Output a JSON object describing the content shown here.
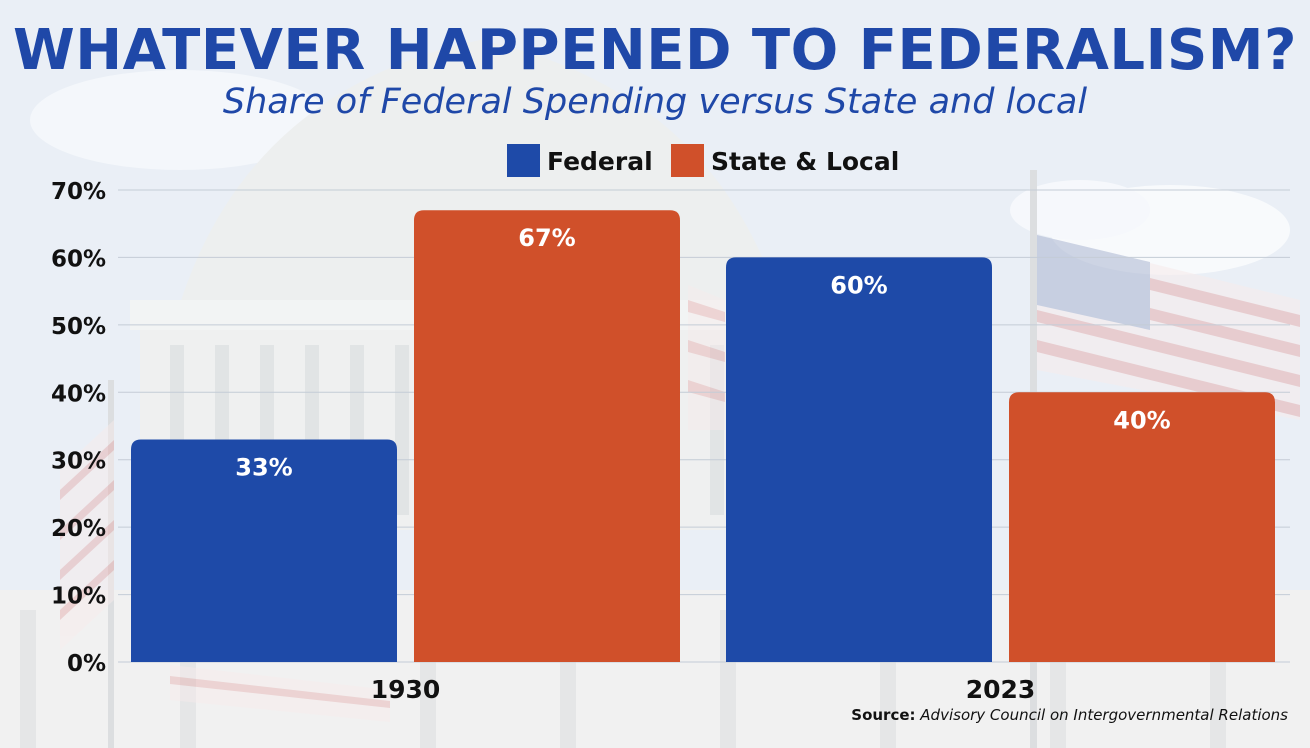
{
  "chart_data": {
    "type": "bar",
    "title": "WHATEVER HAPPENED TO FEDERALISM?",
    "subtitle": "Share of Federal Spending versus State and local",
    "categories": [
      "1930",
      "2023"
    ],
    "series": [
      {
        "name": "Federal",
        "values": [
          33,
          60
        ],
        "color": "#1e4aa8"
      },
      {
        "name": "State & Local",
        "values": [
          67,
          40
        ],
        "color": "#d0502a"
      }
    ],
    "data_labels": [
      [
        "33%",
        "60%"
      ],
      [
        "67%",
        "40%"
      ]
    ],
    "ylim": [
      0,
      70
    ],
    "yticks": [
      0,
      10,
      20,
      30,
      40,
      50,
      60,
      70
    ],
    "ytick_labels": [
      "0%",
      "10%",
      "20%",
      "30%",
      "40%",
      "50%",
      "60%",
      "70%"
    ],
    "grid": true,
    "legend": "top-center",
    "xlabel": "",
    "ylabel": ""
  },
  "source": {
    "label": "Source:",
    "text": "Advisory Council on Intergovernmental Relations"
  }
}
